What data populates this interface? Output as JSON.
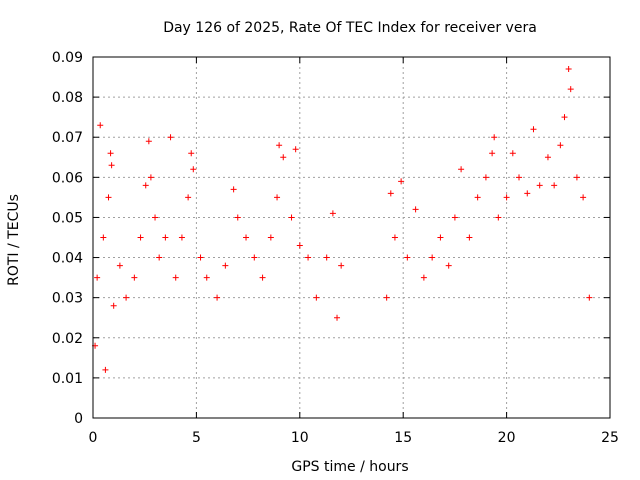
{
  "chart_data": {
    "type": "scatter",
    "title": "Day 126 of 2025, Rate Of TEC Index for receiver vera",
    "xlabel": "GPS time / hours",
    "ylabel": "ROTI / TECUs",
    "xlim": [
      0,
      25
    ],
    "ylim": [
      0,
      0.09
    ],
    "xticks": [
      0,
      5,
      10,
      15,
      20,
      25
    ],
    "xtick_labels": [
      "0",
      "5",
      "10",
      "15",
      "20",
      "25"
    ],
    "yticks": [
      0,
      0.01,
      0.02,
      0.03,
      0.04,
      0.05,
      0.06,
      0.07,
      0.08,
      0.09
    ],
    "ytick_labels": [
      "0",
      "0.01",
      "0.02",
      "0.03",
      "0.04",
      "0.05",
      "0.06",
      "0.07",
      "0.08",
      "0.09"
    ],
    "grid": true,
    "marker": "+",
    "marker_color": "#ff0000",
    "data_gap_hours": [
      12.1,
      14.1
    ],
    "series": [
      {
        "points": [
          [
            0.1,
            0.018
          ],
          [
            0.2,
            0.035
          ],
          [
            0.35,
            0.073
          ],
          [
            0.5,
            0.045
          ],
          [
            0.6,
            0.012
          ],
          [
            0.75,
            0.055
          ],
          [
            0.85,
            0.066
          ],
          [
            0.9,
            0.063
          ],
          [
            1.0,
            0.028
          ],
          [
            1.3,
            0.038
          ],
          [
            1.6,
            0.03
          ],
          [
            2.0,
            0.035
          ],
          [
            2.3,
            0.045
          ],
          [
            2.55,
            0.058
          ],
          [
            2.7,
            0.069
          ],
          [
            2.8,
            0.06
          ],
          [
            3.0,
            0.05
          ],
          [
            3.2,
            0.04
          ],
          [
            3.5,
            0.045
          ],
          [
            3.75,
            0.07
          ],
          [
            4.0,
            0.035
          ],
          [
            4.3,
            0.045
          ],
          [
            4.6,
            0.055
          ],
          [
            4.75,
            0.066
          ],
          [
            4.85,
            0.062
          ],
          [
            5.2,
            0.04
          ],
          [
            5.5,
            0.035
          ],
          [
            6.0,
            0.03
          ],
          [
            6.4,
            0.038
          ],
          [
            6.8,
            0.057
          ],
          [
            7.0,
            0.05
          ],
          [
            7.4,
            0.045
          ],
          [
            7.8,
            0.04
          ],
          [
            8.2,
            0.035
          ],
          [
            8.6,
            0.045
          ],
          [
            8.9,
            0.055
          ],
          [
            9.0,
            0.068
          ],
          [
            9.2,
            0.065
          ],
          [
            9.6,
            0.05
          ],
          [
            9.8,
            0.067
          ],
          [
            10.0,
            0.043
          ],
          [
            10.4,
            0.04
          ],
          [
            10.8,
            0.03
          ],
          [
            11.3,
            0.04
          ],
          [
            11.6,
            0.051
          ],
          [
            11.8,
            0.025
          ],
          [
            12.0,
            0.038
          ],
          [
            14.2,
            0.03
          ],
          [
            14.4,
            0.056
          ],
          [
            14.6,
            0.045
          ],
          [
            14.9,
            0.059
          ],
          [
            15.2,
            0.04
          ],
          [
            15.6,
            0.052
          ],
          [
            16.0,
            0.035
          ],
          [
            16.4,
            0.04
          ],
          [
            16.8,
            0.045
          ],
          [
            17.2,
            0.038
          ],
          [
            17.5,
            0.05
          ],
          [
            17.8,
            0.062
          ],
          [
            18.2,
            0.045
          ],
          [
            18.6,
            0.055
          ],
          [
            19.0,
            0.06
          ],
          [
            19.3,
            0.066
          ],
          [
            19.4,
            0.07
          ],
          [
            19.6,
            0.05
          ],
          [
            20.0,
            0.055
          ],
          [
            20.3,
            0.066
          ],
          [
            20.6,
            0.06
          ],
          [
            21.0,
            0.056
          ],
          [
            21.3,
            0.072
          ],
          [
            21.6,
            0.058
          ],
          [
            22.0,
            0.065
          ],
          [
            22.3,
            0.058
          ],
          [
            22.6,
            0.068
          ],
          [
            22.8,
            0.075
          ],
          [
            23.0,
            0.087
          ],
          [
            23.1,
            0.082
          ],
          [
            23.4,
            0.06
          ],
          [
            23.7,
            0.055
          ],
          [
            24.0,
            0.03
          ]
        ]
      }
    ]
  }
}
